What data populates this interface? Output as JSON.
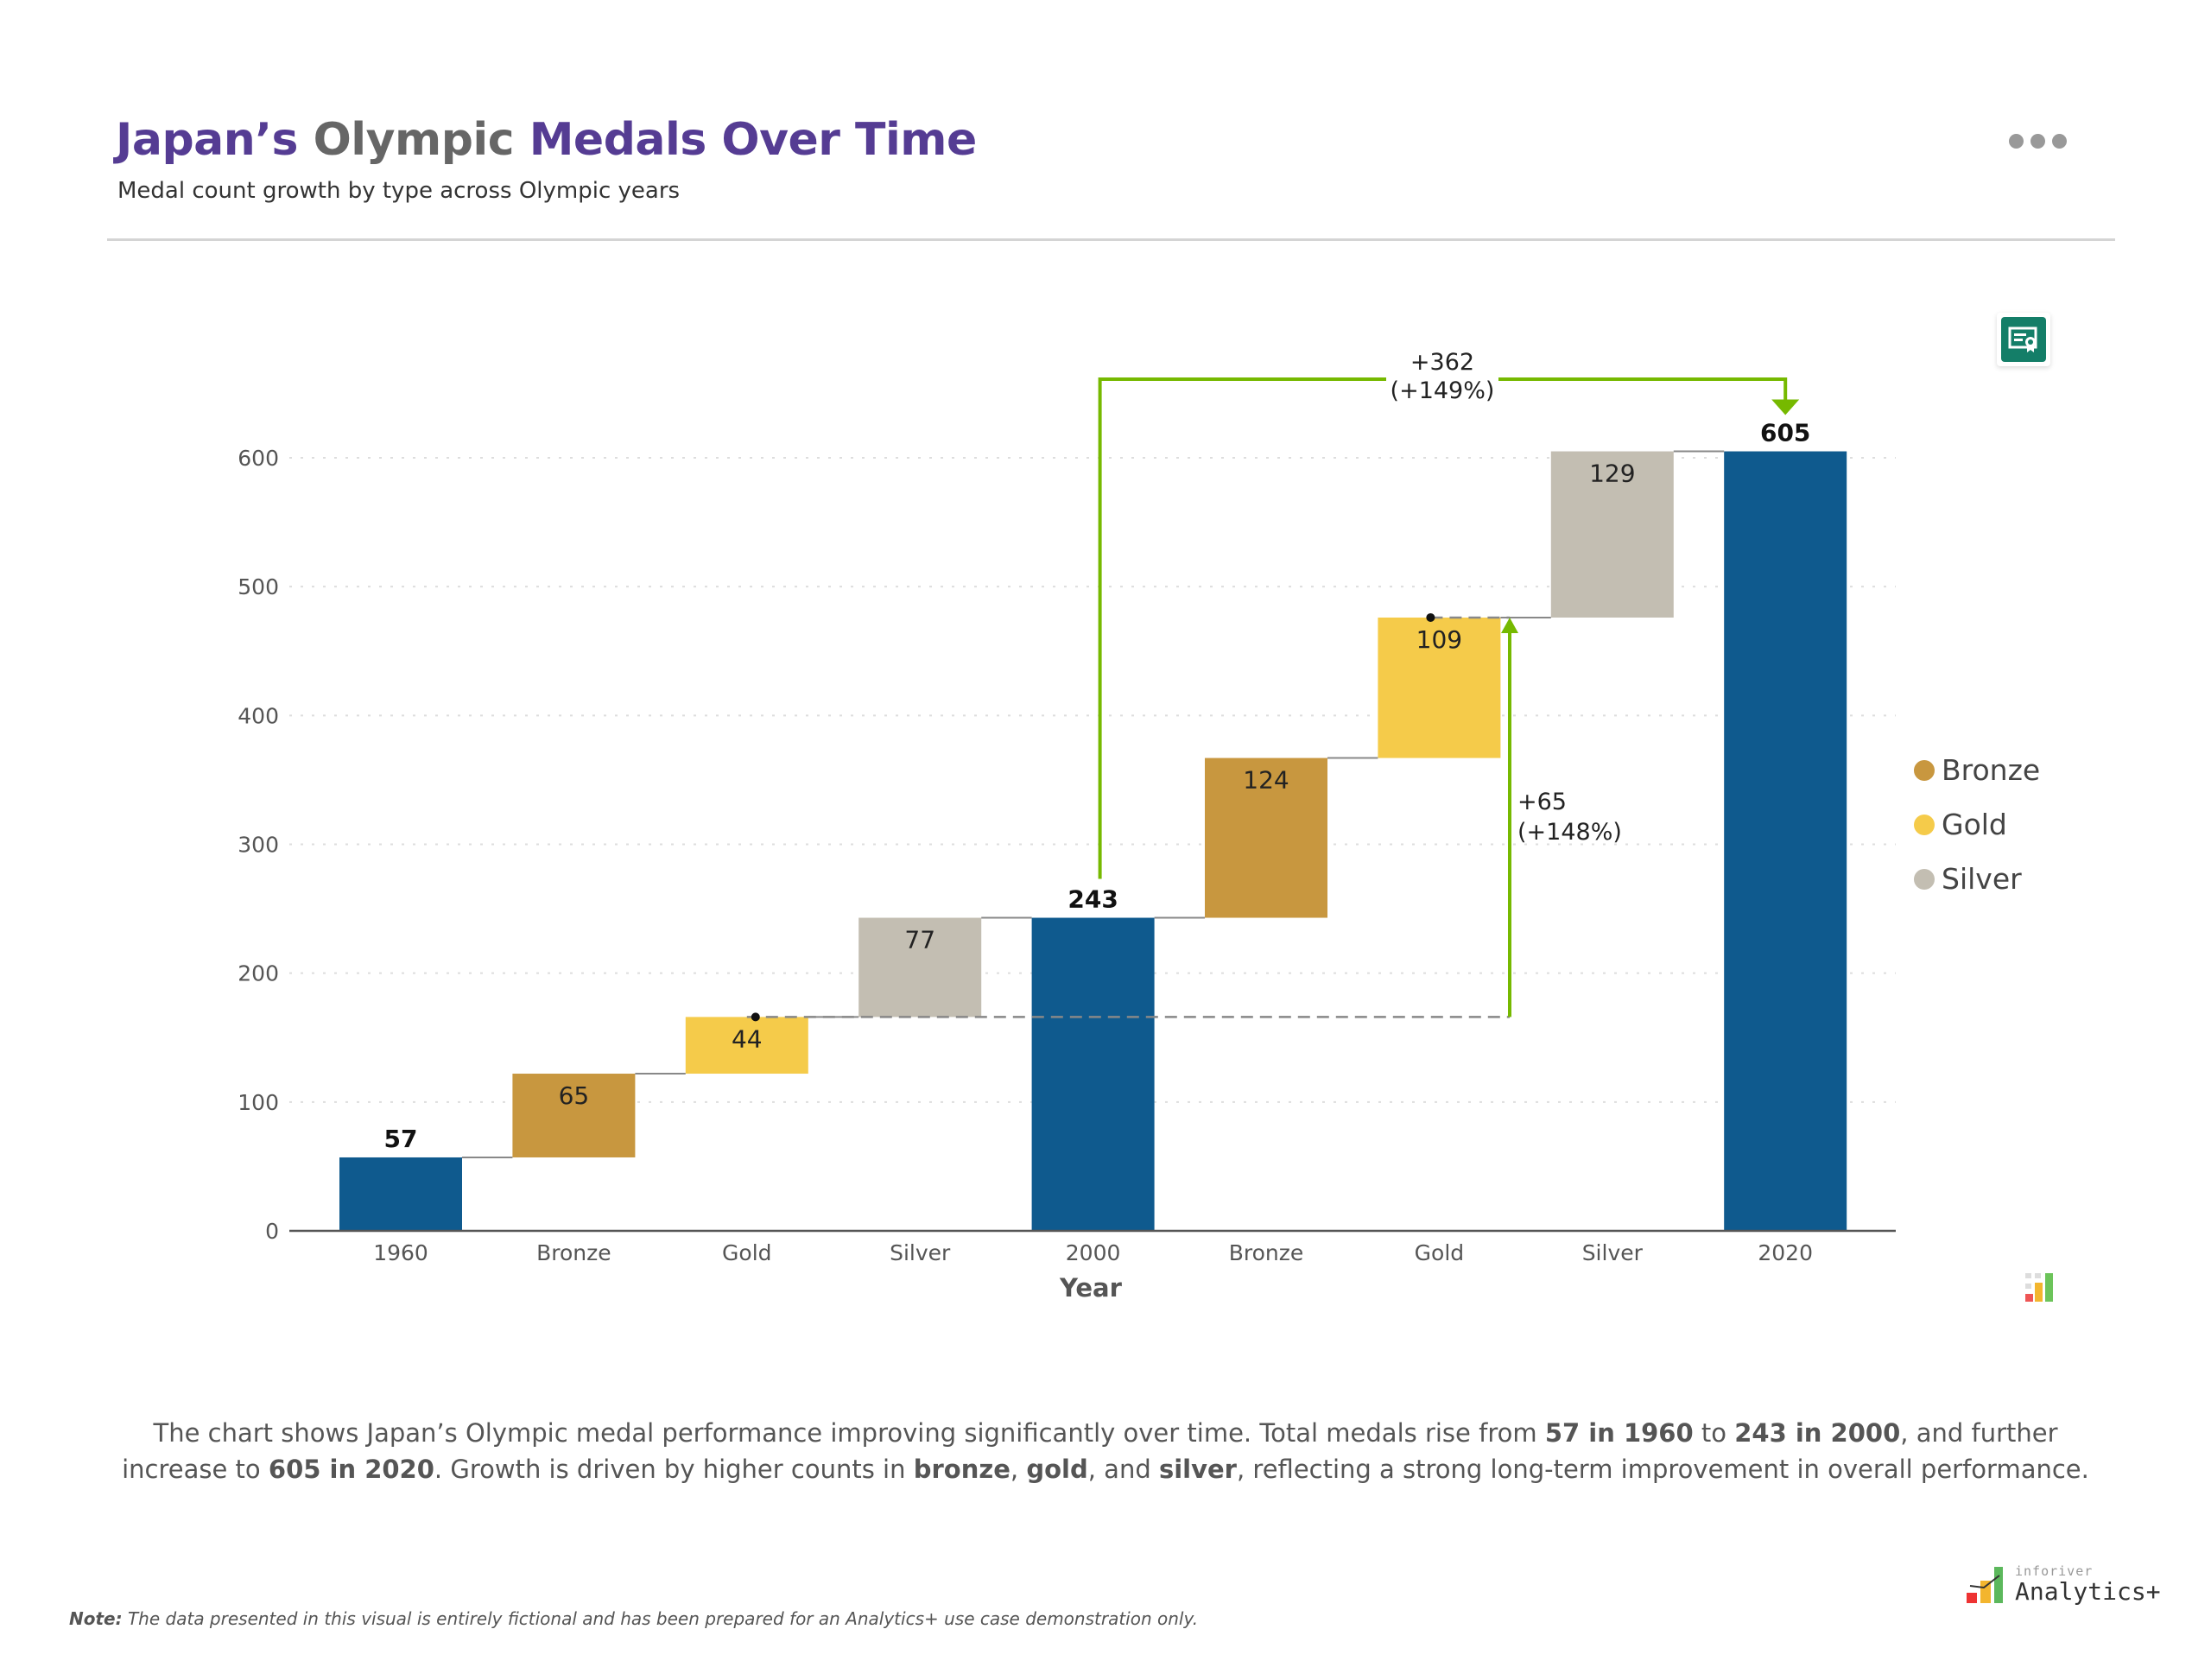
{
  "header": {
    "title_part1": "Japan’s",
    "title_part2": "Olympic",
    "title_part3": "Medals Over Time",
    "subtitle": "Medal count growth by type across Olympic years",
    "more_icon": "ellipsis-icon",
    "certificate_icon": "certificate-icon"
  },
  "colors": {
    "total": "#0f5a8e",
    "Bronze": "#c8973f",
    "Gold": "#f5cb4a",
    "Silver": "#c3beb2",
    "annotation": "#76b900",
    "title": "#553c93"
  },
  "chart_data": {
    "type": "waterfall",
    "xlabel": "Year",
    "ylabel": "",
    "ylim": [
      0,
      600
    ],
    "yticks": [
      0,
      100,
      200,
      300,
      400,
      500,
      600
    ],
    "grid": true,
    "legend_position": "right",
    "categories": [
      "1960",
      "Bronze",
      "Gold",
      "Silver",
      "2000",
      "Bronze",
      "Gold",
      "Silver",
      "2020"
    ],
    "steps": [
      {
        "label": "1960",
        "kind": "total",
        "value": 57,
        "display": "57"
      },
      {
        "label": "Bronze",
        "kind": "delta",
        "series": "Bronze",
        "value": 65,
        "display": "65"
      },
      {
        "label": "Gold",
        "kind": "delta",
        "series": "Gold",
        "value": 44,
        "display": "44"
      },
      {
        "label": "Silver",
        "kind": "delta",
        "series": "Silver",
        "value": 77,
        "display": "77"
      },
      {
        "label": "2000",
        "kind": "total",
        "value": 243,
        "display": "243"
      },
      {
        "label": "Bronze",
        "kind": "delta",
        "series": "Bronze",
        "value": 124,
        "display": "124"
      },
      {
        "label": "Gold",
        "kind": "delta",
        "series": "Gold",
        "value": 109,
        "display": "109"
      },
      {
        "label": "Silver",
        "kind": "delta",
        "series": "Silver",
        "value": 129,
        "display": "129"
      },
      {
        "label": "2020",
        "kind": "total",
        "value": 605,
        "display": "605"
      }
    ],
    "legend": [
      "Bronze",
      "Gold",
      "Silver"
    ],
    "annotations": [
      {
        "from": "2000",
        "to": "2020",
        "line1": "+362",
        "line2": "(+149%)"
      },
      {
        "from": "Gold",
        "to": "Gold",
        "line1": "+65",
        "line2": "(+148%)"
      }
    ]
  },
  "description": [
    {
      "text": "The chart shows Japan’s Olympic medal performance improving significantly over time. Total medals rise from ",
      "bold": false
    },
    {
      "text": "57 in 1960",
      "bold": true
    },
    {
      "text": " to ",
      "bold": false
    },
    {
      "text": "243 in 2000",
      "bold": true
    },
    {
      "text": ", and further increase to ",
      "bold": false
    },
    {
      "text": "605 in 2020",
      "bold": true
    },
    {
      "text": ". Growth is driven by higher counts in ",
      "bold": false
    },
    {
      "text": "bronze",
      "bold": true
    },
    {
      "text": ", ",
      "bold": false
    },
    {
      "text": "gold",
      "bold": true
    },
    {
      "text": ", and ",
      "bold": false
    },
    {
      "text": "silver",
      "bold": true
    },
    {
      "text": ", reflecting a strong long-term improvement in overall performance.",
      "bold": false
    }
  ],
  "note": {
    "label": "Note:",
    "text": " The data presented in this visual is entirely fictional and has been prepared for an Analytics+ use case demonstration only."
  },
  "logo": {
    "small": "inforiver",
    "big": "Analytics+"
  }
}
